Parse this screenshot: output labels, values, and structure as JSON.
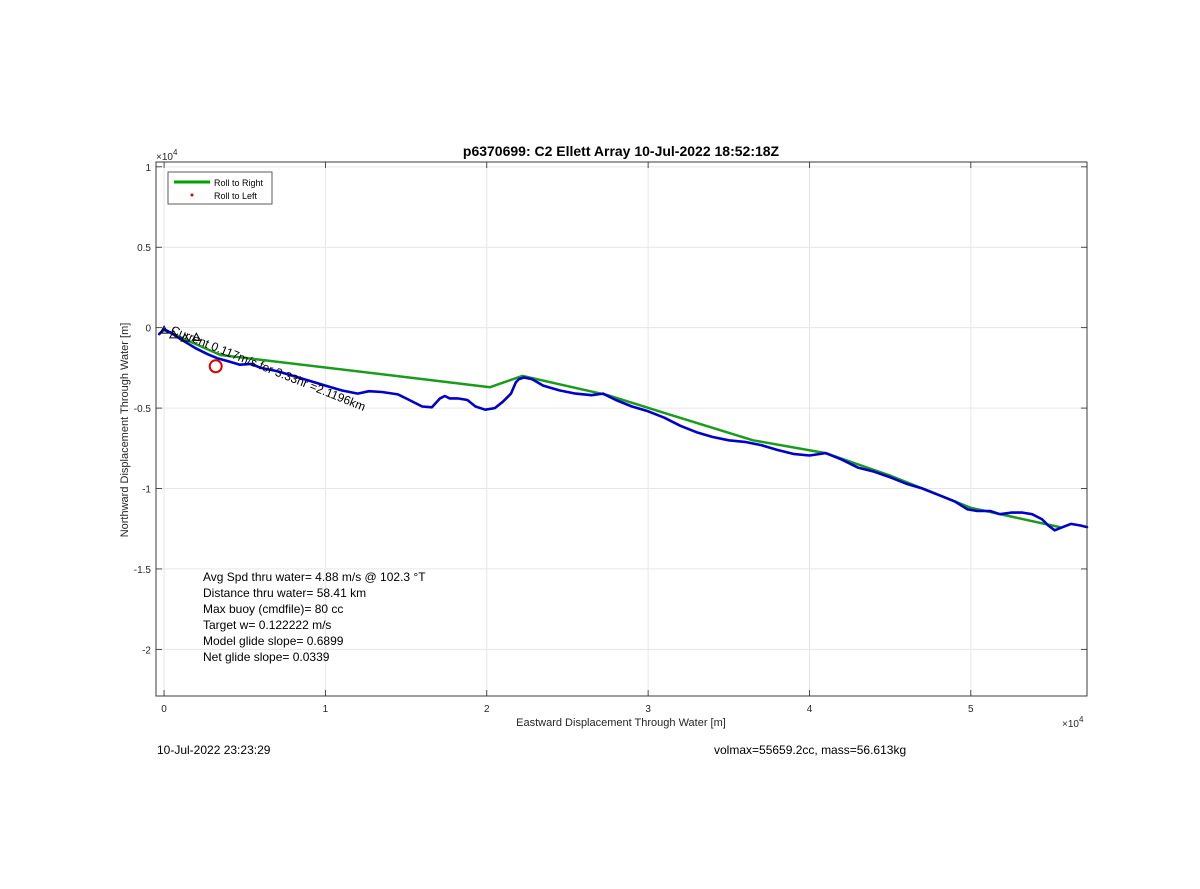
{
  "chart_data": {
    "type": "line",
    "title": "p6370699: C2 Ellett Array 10-Jul-2022 18:52:18Z",
    "xlabel": "Eastward Displacement Through Water [m]",
    "ylabel": "Northward Displacement Through Water [m]",
    "xlim": [
      -500,
      57200
    ],
    "ylim": [
      -22900,
      10300
    ],
    "x_ticks": [
      0,
      10000,
      20000,
      30000,
      40000,
      50000
    ],
    "x_tick_labels": [
      "0",
      "1",
      "2",
      "3",
      "4",
      "5"
    ],
    "y_ticks": [
      10000,
      5000,
      0,
      -5000,
      -10000,
      -15000,
      -20000
    ],
    "y_tick_labels": [
      "1",
      "0.5",
      "0",
      "-0.5",
      "-1",
      "-1.5",
      "-2"
    ],
    "x_exponent": "×10",
    "x_exponent_power": "4",
    "y_exponent": "×10",
    "y_exponent_power": "4",
    "grid": true,
    "legend_position": "top-left",
    "legend": [
      {
        "label": "Roll to Right",
        "color": "#00a000",
        "marker": "line"
      },
      {
        "label": "Roll to Left",
        "color": "#e00000",
        "marker": "dot"
      }
    ],
    "series": [
      {
        "name": "Roll to Right",
        "color": "#1a9c1a",
        "x": [
          0,
          3500,
          20200,
          22200,
          27500,
          31000,
          36500,
          41000,
          45000,
          50000,
          55500
        ],
        "y": [
          -150,
          -1700,
          -3700,
          -3000,
          -4200,
          -5300,
          -7000,
          -7800,
          -9200,
          -11200,
          -12400
        ]
      },
      {
        "name": "",
        "color": "#0000cc",
        "x": [
          -300,
          0,
          400,
          1000,
          1500,
          2000,
          2700,
          3300,
          4000,
          4700,
          5400,
          6000,
          7000,
          8000,
          9000,
          10000,
          11000,
          12000,
          12700,
          13500,
          14500,
          15200,
          16000,
          16600,
          17100,
          17400,
          17700,
          18200,
          18800,
          19300,
          19900,
          20500,
          21000,
          21500,
          21800,
          22000,
          22300,
          22800,
          23500,
          24500,
          25500,
          26500,
          27200,
          28000,
          29000,
          30000,
          31000,
          32000,
          33000,
          34000,
          35000,
          36000,
          37000,
          38000,
          39000,
          40000,
          41000,
          42000,
          43000,
          44000,
          45000,
          46000,
          47000,
          48000,
          49000,
          49800,
          50400,
          51200,
          51800,
          52500,
          53200,
          53800,
          54400,
          54800,
          55200,
          55700,
          56200,
          56800,
          57200
        ],
        "y": [
          -400,
          -100,
          -300,
          -700,
          -1000,
          -1300,
          -1650,
          -1900,
          -2100,
          -2300,
          -2250,
          -2500,
          -2700,
          -3000,
          -3300,
          -3600,
          -3900,
          -4100,
          -3950,
          -4000,
          -4150,
          -4500,
          -4900,
          -4950,
          -4400,
          -4250,
          -4400,
          -4400,
          -4500,
          -4900,
          -5100,
          -5000,
          -4600,
          -4100,
          -3400,
          -3200,
          -3100,
          -3200,
          -3600,
          -3900,
          -4100,
          -4200,
          -4100,
          -4500,
          -4900,
          -5200,
          -5600,
          -6100,
          -6500,
          -6800,
          -7000,
          -7100,
          -7300,
          -7600,
          -7850,
          -7950,
          -7800,
          -8200,
          -8700,
          -8950,
          -9300,
          -9700,
          -10000,
          -10400,
          -10800,
          -11300,
          -11400,
          -11400,
          -11600,
          -11500,
          -11500,
          -11600,
          -11900,
          -12300,
          -12600,
          -12400,
          -12200,
          -12300,
          -12400
        ]
      }
    ],
    "markers": [
      {
        "label": "circle",
        "color": "#e00000",
        "x": 3200,
        "y": -2400
      }
    ],
    "annotations": [
      {
        "text": "Current 0.117m/s for 3.33hr =2.1196km",
        "color": "#000000"
      }
    ],
    "stats_text": [
      "Avg Spd thru water=  4.88 m/s @ 102.3 °T",
      "Distance thru water= 58.41 km",
      "Max buoy (cmdfile)= 80 cc",
      "Target w= 0.122222 m/s",
      "Model glide slope= 0.6899",
      "Net glide slope= 0.0339"
    ]
  },
  "footer": {
    "timestamp": "10-Jul-2022 23:23:29",
    "vol_mass": "volmax=55659.2cc, mass=56.613kg"
  }
}
